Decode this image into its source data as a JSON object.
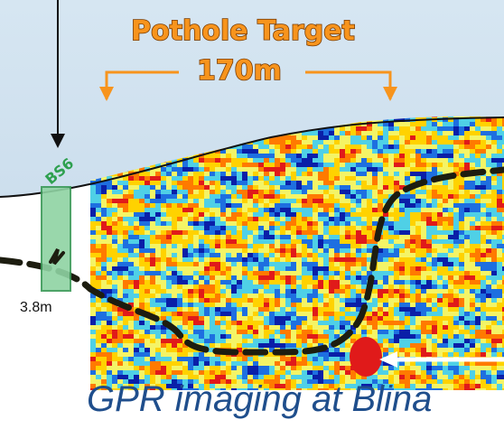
{
  "header": {
    "title": "Pothole Target",
    "distance": "170m"
  },
  "borehole": {
    "label": "BS6",
    "depth": "3.8m"
  },
  "caption": "GPR imaging at Blina",
  "colors": {
    "sky": "#cfe0ee",
    "accent_orange": "#f7941d",
    "borehole_fill": "#8fd3a3",
    "borehole_stroke": "#3a9a57",
    "caption_blue": "#1f4e8c",
    "radar_palette": [
      "#e01a1a",
      "#ff7a00",
      "#ffd200",
      "#f4f466",
      "#4fd0e6",
      "#1e6fe0",
      "#0a1fa8"
    ]
  },
  "icons": {
    "pointer_arrow": "down-arrow-icon",
    "target_arrows": "orange-arrow-icon",
    "highlight_arrow": "white-left-arrow-icon"
  }
}
